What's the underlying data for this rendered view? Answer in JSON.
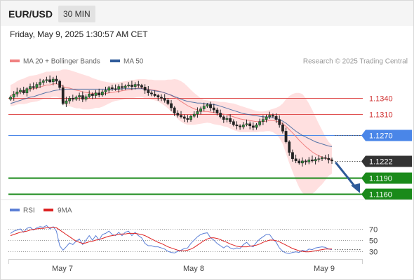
{
  "header": {
    "pair": "EUR/USD",
    "timeframe": "30 MIN"
  },
  "timestamp": "Friday, May 9, 2025 1:30:57 AM CET",
  "legend": {
    "bollinger": {
      "label": "MA 20 + Bollinger Bands",
      "color": "#f08080"
    },
    "ma50": {
      "label": "MA 50",
      "color": "#2e5a99"
    },
    "rsi": {
      "label": "RSI",
      "color": "#5b7fd6"
    },
    "ma9": {
      "label": "9MA",
      "color": "#dd2222"
    }
  },
  "watermark": "Research © 2025 Trading Central",
  "chart_data": [
    {
      "type": "candlestick",
      "price_axis": {
        "range": [
          1.1152,
          1.1405
        ]
      },
      "x_ticks": [
        "May 7",
        "May 8",
        "May 9"
      ],
      "levels": [
        {
          "value": 1.134,
          "label": "1.1340",
          "kind": "resistance",
          "color": "#e05050"
        },
        {
          "value": 1.131,
          "label": "1.1310",
          "kind": "resistance",
          "color": "#e05050"
        },
        {
          "value": 1.127,
          "label": "1.1270",
          "kind": "pivot",
          "color": "#4a86e8"
        },
        {
          "value": 1.119,
          "label": "1.1190",
          "kind": "support",
          "color": "#1a8a1a"
        },
        {
          "value": 1.116,
          "label": "1.1160",
          "kind": "support",
          "color": "#1a8a1a"
        }
      ],
      "last_price": {
        "value": 1.1222,
        "label": "1.1222"
      },
      "projection": {
        "from": 1.1222,
        "to": 1.116,
        "direction": "down"
      },
      "ohlc_close": [
        1.1342,
        1.1348,
        1.1352,
        1.1355,
        1.135,
        1.1358,
        1.1362,
        1.136,
        1.1366,
        1.137,
        1.1373,
        1.1375,
        1.1371,
        1.1376,
        1.1372,
        1.136,
        1.133,
        1.1335,
        1.134,
        1.1338,
        1.1342,
        1.1345,
        1.1338,
        1.1343,
        1.1348,
        1.1345,
        1.135,
        1.1346,
        1.1352,
        1.1355,
        1.136,
        1.1358,
        1.1357,
        1.1362,
        1.136,
        1.1363,
        1.1365,
        1.1362,
        1.1366,
        1.1364,
        1.1361,
        1.1355,
        1.135,
        1.1348,
        1.1345,
        1.1342,
        1.134,
        1.1336,
        1.133,
        1.1322,
        1.1312,
        1.1308,
        1.1305,
        1.1302,
        1.13,
        1.1306,
        1.131,
        1.1315,
        1.132,
        1.1325,
        1.1328,
        1.1322,
        1.1318,
        1.1312,
        1.1305,
        1.13,
        1.1302,
        1.1296,
        1.129,
        1.1288,
        1.1286,
        1.129,
        1.1292,
        1.1288,
        1.1285,
        1.129,
        1.1296,
        1.13,
        1.1305,
        1.1308,
        1.1306,
        1.13,
        1.129,
        1.1278,
        1.1258,
        1.1238,
        1.1226,
        1.1222,
        1.1218,
        1.1222,
        1.122,
        1.1224,
        1.1222,
        1.1225,
        1.1226,
        1.1228,
        1.1227,
        1.1224,
        1.1222
      ],
      "ma20": [
        1.1345,
        1.1347,
        1.135,
        1.1352,
        1.1353,
        1.1355,
        1.1357,
        1.1358,
        1.1359,
        1.1361,
        1.1363,
        1.1365,
        1.1365,
        1.1367,
        1.1367,
        1.1366,
        1.1362,
        1.136,
        1.1359,
        1.1357,
        1.1355,
        1.1354,
        1.1352,
        1.1351,
        1.135,
        1.1349,
        1.1349,
        1.1348,
        1.1348,
        1.1349,
        1.135,
        1.1351,
        1.1352,
        1.1353,
        1.1354,
        1.1355,
        1.1356,
        1.1357,
        1.1358,
        1.1359,
        1.1359,
        1.1358,
        1.1357,
        1.1356,
        1.1355,
        1.1354,
        1.1352,
        1.135,
        1.1348,
        1.1345,
        1.1342,
        1.1338,
        1.1334,
        1.133,
        1.1326,
        1.1323,
        1.132,
        1.1318,
        1.1316,
        1.1315,
        1.1315,
        1.1314,
        1.1313,
        1.1312,
        1.1311,
        1.131,
        1.1309,
        1.1307,
        1.1305,
        1.1303,
        1.1301,
        1.13,
        1.1299,
        1.1298,
        1.1297,
        1.1296,
        1.1296,
        1.1296,
        1.1297,
        1.1298,
        1.1298,
        1.1297,
        1.1295,
        1.1292,
        1.1287,
        1.1281,
        1.1275,
        1.1268,
        1.1261,
        1.1255,
        1.1249,
        1.1244,
        1.1239,
        1.1235,
        1.1232,
        1.1229,
        1.1227,
        1.1226,
        1.1225
      ],
      "bb_upper": [
        1.1365,
        1.1368,
        1.1372,
        1.1375,
        1.1377,
        1.138,
        1.1382,
        1.1383,
        1.1384,
        1.1386,
        1.1388,
        1.139,
        1.139,
        1.1391,
        1.1391,
        1.1392,
        1.1394,
        1.1394,
        1.1393,
        1.1391,
        1.1389,
        1.1387,
        1.1385,
        1.1383,
        1.1381,
        1.1378,
        1.1376,
        1.1374,
        1.1372,
        1.1371,
        1.137,
        1.1369,
        1.1369,
        1.137,
        1.1371,
        1.1372,
        1.1373,
        1.1374,
        1.1375,
        1.1376,
        1.1376,
        1.1376,
        1.1375,
        1.1375,
        1.1374,
        1.1374,
        1.1374,
        1.1374,
        1.1375,
        1.1375,
        1.1376,
        1.1375,
        1.1372,
        1.1368,
        1.1362,
        1.1356,
        1.135,
        1.1345,
        1.134,
        1.1337,
        1.1336,
        1.1335,
        1.1335,
        1.1334,
        1.1333,
        1.1333,
        1.1332,
        1.1331,
        1.133,
        1.1328,
        1.1326,
        1.1324,
        1.1322,
        1.132,
        1.1318,
        1.1316,
        1.1315,
        1.1315,
        1.1316,
        1.1318,
        1.132,
        1.1322,
        1.1325,
        1.133,
        1.1338,
        1.1344,
        1.1348,
        1.135,
        1.135,
        1.1348,
        1.134,
        1.133,
        1.1318,
        1.1305,
        1.1292,
        1.128,
        1.1268,
        1.1258,
        1.1252
      ],
      "bb_lower": [
        1.1325,
        1.1326,
        1.1328,
        1.1329,
        1.1329,
        1.133,
        1.1332,
        1.1333,
        1.1334,
        1.1336,
        1.1338,
        1.134,
        1.134,
        1.1343,
        1.1343,
        1.134,
        1.133,
        1.1326,
        1.1325,
        1.1323,
        1.1321,
        1.1321,
        1.1319,
        1.1319,
        1.1319,
        1.132,
        1.1322,
        1.1322,
        1.1324,
        1.1327,
        1.133,
        1.1333,
        1.1335,
        1.1336,
        1.1337,
        1.1338,
        1.1339,
        1.134,
        1.1341,
        1.1342,
        1.1342,
        1.134,
        1.1339,
        1.1337,
        1.1336,
        1.1334,
        1.133,
        1.1326,
        1.1321,
        1.1315,
        1.1308,
        1.1301,
        1.1296,
        1.1292,
        1.129,
        1.129,
        1.129,
        1.1291,
        1.1292,
        1.1293,
        1.1294,
        1.1293,
        1.1291,
        1.129,
        1.1289,
        1.1287,
        1.1286,
        1.1283,
        1.128,
        1.1278,
        1.1276,
        1.1276,
        1.1276,
        1.1276,
        1.1276,
        1.1276,
        1.1277,
        1.1277,
        1.1278,
        1.1278,
        1.1276,
        1.1272,
        1.1265,
        1.1254,
        1.1236,
        1.1218,
        1.1202,
        1.1186,
        1.1172,
        1.1162,
        1.1158,
        1.1158,
        1.116,
        1.1165,
        1.1172,
        1.1178,
        1.1186,
        1.1194,
        1.1198
      ],
      "ma50": [
        1.133,
        1.1332,
        1.1334,
        1.1336,
        1.1338,
        1.134,
        1.1342,
        1.1343,
        1.1345,
        1.1347,
        1.1349,
        1.1351,
        1.1352,
        1.1354,
        1.1355,
        1.1356,
        1.1356,
        1.1357,
        1.1357,
        1.1357,
        1.1357,
        1.1357,
        1.1357,
        1.1357,
        1.1357,
        1.1357,
        1.1357,
        1.1357,
        1.1357,
        1.1357,
        1.1357,
        1.1357,
        1.1357,
        1.1357,
        1.1358,
        1.1358,
        1.1358,
        1.1358,
        1.1358,
        1.1358,
        1.1358,
        1.1357,
        1.1356,
        1.1355,
        1.1354,
        1.1353,
        1.1352,
        1.135,
        1.1348,
        1.1346,
        1.1343,
        1.1341,
        1.1338,
        1.1336,
        1.1334,
        1.1333,
        1.1332,
        1.1331,
        1.1331,
        1.133,
        1.133,
        1.1329,
        1.1328,
        1.1327,
        1.1325,
        1.1323,
        1.1321,
        1.1319,
        1.1317,
        1.1315,
        1.1313,
        1.1311,
        1.131,
        1.1309,
        1.1308,
        1.1307,
        1.1306,
        1.1305,
        1.1305,
        1.1304,
        1.1303,
        1.1302,
        1.13,
        1.1297,
        1.1293,
        1.1288,
        1.1283,
        1.1278,
        1.1274,
        1.127,
        1.1267,
        1.1264,
        1.1261,
        1.1258,
        1.1256,
        1.1254,
        1.1252,
        1.125,
        1.1249
      ]
    },
    {
      "type": "line",
      "panel": "RSI",
      "y_ticks": [
        70,
        50,
        30
      ],
      "ylim": [
        20,
        85
      ],
      "series": [
        {
          "name": "RSI",
          "values": [
            62,
            66,
            68,
            70,
            64,
            71,
            73,
            68,
            72,
            74,
            73,
            76,
            70,
            74,
            66,
            40,
            32,
            38,
            45,
            42,
            48,
            52,
            42,
            50,
            58,
            50,
            58,
            50,
            60,
            62,
            66,
            60,
            58,
            64,
            58,
            64,
            66,
            58,
            64,
            58,
            54,
            44,
            40,
            40,
            38,
            38,
            36,
            34,
            30,
            28,
            27,
            30,
            32,
            35,
            36,
            44,
            50,
            56,
            60,
            62,
            63,
            54,
            50,
            44,
            40,
            36,
            40,
            36,
            34,
            36,
            35,
            42,
            46,
            40,
            38,
            46,
            52,
            56,
            60,
            60,
            52,
            46,
            36,
            30,
            27,
            26,
            28,
            29,
            28,
            32,
            30,
            34,
            33,
            36,
            37,
            38,
            37,
            34,
            33
          ]
        },
        {
          "name": "9MA",
          "values": [
            58,
            60,
            62,
            64,
            65,
            66,
            68,
            69,
            70,
            71,
            71,
            72,
            72,
            73,
            72,
            68,
            64,
            60,
            56,
            52,
            48,
            46,
            44,
            45,
            47,
            48,
            50,
            51,
            53,
            55,
            57,
            58,
            59,
            60,
            61,
            61,
            62,
            62,
            62,
            61,
            60,
            58,
            55,
            52,
            49,
            46,
            44,
            41,
            38,
            36,
            34,
            32,
            31,
            31,
            32,
            34,
            37,
            41,
            45,
            49,
            52,
            54,
            54,
            53,
            51,
            48,
            46,
            43,
            41,
            39,
            38,
            38,
            38,
            39,
            40,
            41,
            43,
            46,
            48,
            50,
            50,
            49,
            47,
            44,
            41,
            38,
            35,
            33,
            31,
            30,
            29,
            29,
            30,
            31,
            32,
            33,
            34,
            34,
            34
          ]
        }
      ]
    }
  ]
}
